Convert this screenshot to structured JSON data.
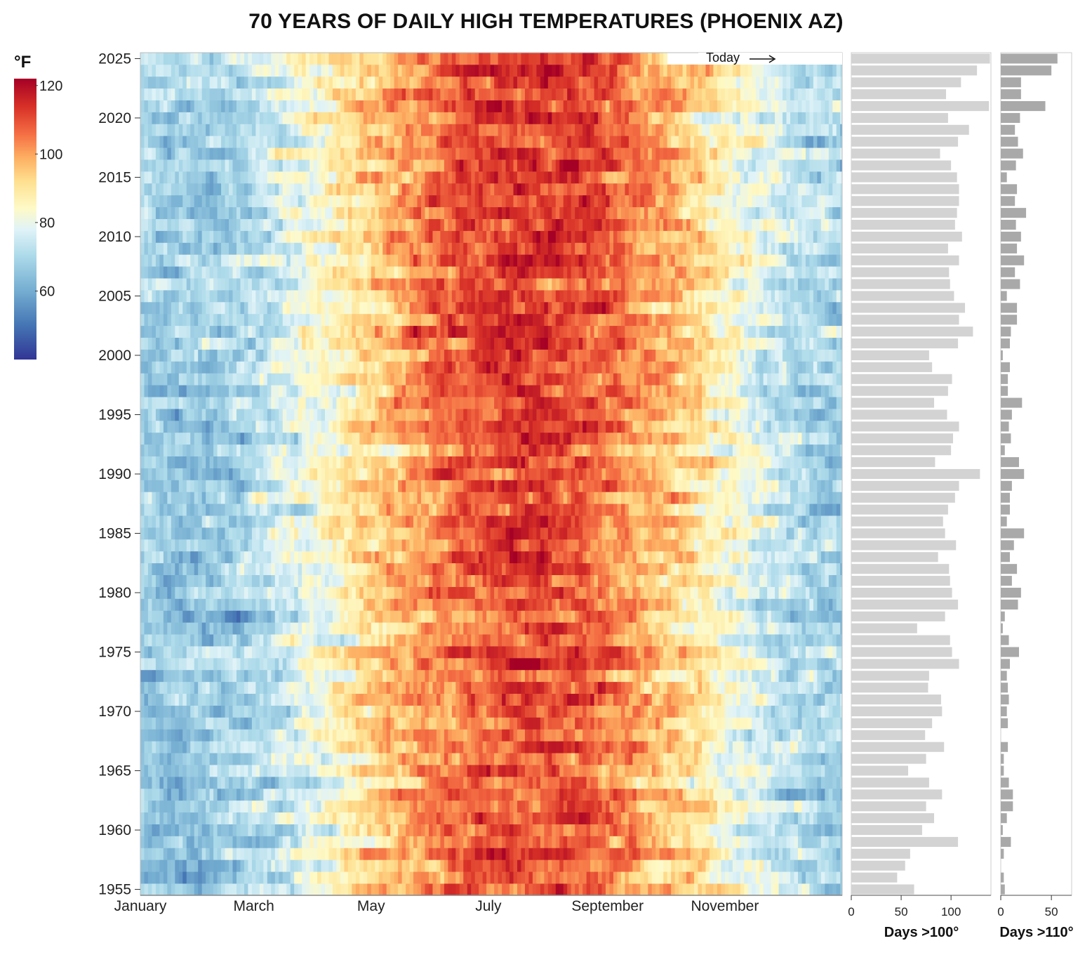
{
  "chart_data": {
    "type": "heatmap",
    "title": "70 YEARS OF DAILY HIGH TEMPERATURES (PHOENIX AZ)",
    "legend": {
      "unit": "°F",
      "ticks": [
        120,
        100,
        80,
        60
      ],
      "range": [
        40,
        122
      ],
      "placement": "top-left"
    },
    "years": [
      1955,
      1956,
      1957,
      1958,
      1959,
      1960,
      1961,
      1962,
      1963,
      1964,
      1965,
      1966,
      1967,
      1968,
      1969,
      1970,
      1971,
      1972,
      1973,
      1974,
      1975,
      1976,
      1977,
      1978,
      1979,
      1980,
      1981,
      1982,
      1983,
      1984,
      1985,
      1986,
      1987,
      1988,
      1989,
      1990,
      1991,
      1992,
      1993,
      1994,
      1995,
      1996,
      1997,
      1998,
      1999,
      2000,
      2001,
      2002,
      2003,
      2004,
      2005,
      2006,
      2007,
      2008,
      2009,
      2010,
      2011,
      2012,
      2013,
      2014,
      2015,
      2016,
      2017,
      2018,
      2019,
      2020,
      2021,
      2022,
      2023,
      2024,
      2025
    ],
    "year_ticks": [
      2025,
      2020,
      2015,
      2010,
      2005,
      2000,
      1995,
      1990,
      1985,
      1980,
      1975,
      1970,
      1965,
      1960,
      1955
    ],
    "month_ticks": [
      {
        "label": "January",
        "day": 0
      },
      {
        "label": "March",
        "day": 59
      },
      {
        "label": "May",
        "day": 120
      },
      {
        "label": "July",
        "day": 181
      },
      {
        "label": "September",
        "day": 243
      },
      {
        "label": "November",
        "day": 304
      }
    ],
    "today_annotation": {
      "label": "Today",
      "year": 2025,
      "day_of_year": 274
    },
    "days_over_100": {
      "title": "Days >100°",
      "ticks": [
        0,
        50,
        100
      ],
      "xlim": [
        0,
        140
      ],
      "values": [
        63,
        46,
        54,
        59,
        107,
        71,
        83,
        75,
        91,
        78,
        57,
        75,
        93,
        74,
        81,
        91,
        90,
        77,
        78,
        108,
        101,
        99,
        66,
        94,
        107,
        101,
        99,
        98,
        87,
        105,
        94,
        92,
        97,
        104,
        108,
        129,
        84,
        100,
        102,
        108,
        96,
        83,
        97,
        101,
        81,
        78,
        107,
        122,
        108,
        114,
        103,
        99,
        98,
        108,
        97,
        111,
        104,
        106,
        108,
        108,
        106,
        100,
        89,
        107,
        118,
        97,
        138,
        95,
        110,
        126,
        139
      ]
    },
    "days_over_110": {
      "title": "Days >110°",
      "ticks": [
        0,
        50
      ],
      "xlim": [
        0,
        70
      ],
      "values": [
        4,
        3,
        0,
        3,
        10,
        2,
        6,
        12,
        12,
        8,
        3,
        3,
        7,
        0,
        7,
        6,
        8,
        7,
        6,
        9,
        18,
        8,
        2,
        4,
        17,
        20,
        11,
        16,
        9,
        13,
        23,
        6,
        9,
        9,
        11,
        23,
        18,
        4,
        10,
        8,
        11,
        21,
        7,
        7,
        9,
        2,
        9,
        10,
        16,
        16,
        6,
        19,
        14,
        23,
        16,
        20,
        15,
        25,
        14,
        16,
        6,
        15,
        22,
        17,
        14,
        19,
        44,
        20,
        20,
        50,
        56
      ]
    }
  }
}
